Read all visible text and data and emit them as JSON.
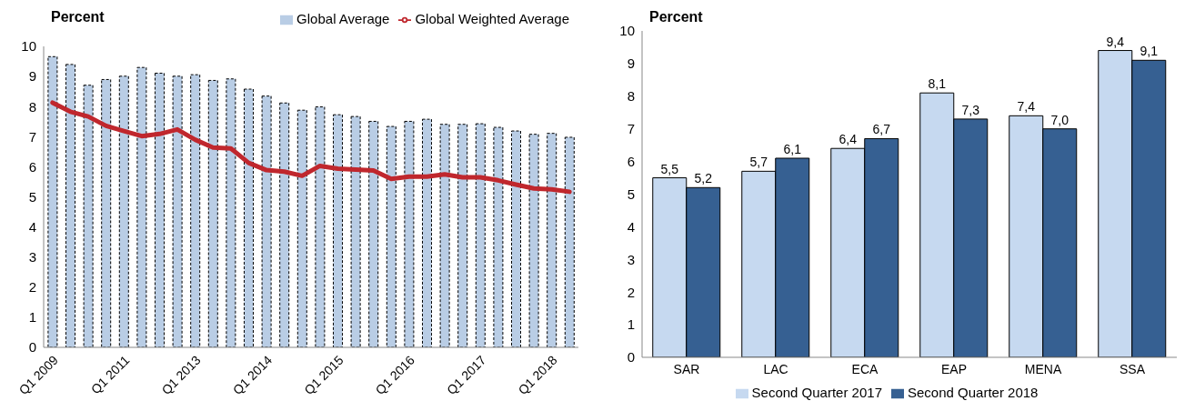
{
  "chart_data": [
    {
      "type": "bar",
      "ylabel": "Percent",
      "categories": [
        "Q1 2009",
        null,
        null,
        null,
        "Q1 2011",
        null,
        null,
        null,
        "Q1 2013",
        null,
        null,
        null,
        "Q1 2014",
        null,
        null,
        null,
        "Q1 2015",
        null,
        null,
        null,
        "Q1 2016",
        null,
        null,
        null,
        "Q1 2017",
        null,
        null,
        null,
        "Q1 2018",
        null
      ],
      "series": [
        {
          "name": "Global Average",
          "color": "#b9cde5",
          "values": [
            9.66,
            9.4,
            8.71,
            8.9,
            9.01,
            9.3,
            9.11,
            9.01,
            9.06,
            8.87,
            8.92,
            8.58,
            8.35,
            8.12,
            7.88,
            7.99,
            7.73,
            7.67,
            7.51,
            7.34,
            7.51,
            7.58,
            7.41,
            7.41,
            7.43,
            7.31,
            7.19,
            7.08,
            7.11,
            6.98
          ]
        },
        {
          "name": "Global Weighted Average",
          "type": "line",
          "color": "#c0272d",
          "values": [
            8.13,
            7.83,
            7.67,
            7.36,
            7.19,
            7.02,
            7.09,
            7.24,
            6.9,
            6.64,
            6.61,
            6.13,
            5.89,
            5.84,
            5.7,
            6.03,
            5.94,
            5.91,
            5.88,
            5.6,
            5.67,
            5.67,
            5.75,
            5.65,
            5.65,
            5.55,
            5.41,
            5.28,
            5.25,
            5.17
          ]
        }
      ],
      "ylim": [
        0,
        10
      ],
      "yticks": [
        0,
        1,
        2,
        3,
        4,
        5,
        6,
        7,
        8,
        9,
        10
      ],
      "grid": false,
      "legend": "top right",
      "marker": "none"
    },
    {
      "type": "bar",
      "ylabel": "Percent",
      "categories": [
        "SAR",
        "LAC",
        "ECA",
        "EAP",
        "MENA",
        "SSA"
      ],
      "series": [
        {
          "name": "Second Quarter 2017",
          "color": "#c6d9f0",
          "values": [
            5.5,
            5.7,
            6.4,
            8.1,
            7.4,
            9.4
          ],
          "value_labels": [
            "5,5",
            "5,7",
            "6,4",
            "8,1",
            "7,4",
            "9,4"
          ]
        },
        {
          "name": "Second Quarter 2018",
          "color": "#366092",
          "values": [
            5.2,
            6.1,
            6.7,
            7.3,
            7.0,
            9.1
          ],
          "value_labels": [
            "5,2",
            "6,1",
            "6,7",
            "7,3",
            "7,0",
            "9,1"
          ]
        }
      ],
      "ylim": [
        0,
        10
      ],
      "yticks": [
        0,
        1,
        2,
        3,
        4,
        5,
        6,
        7,
        8,
        9,
        10
      ],
      "grid": false,
      "legend": "bottom"
    }
  ]
}
